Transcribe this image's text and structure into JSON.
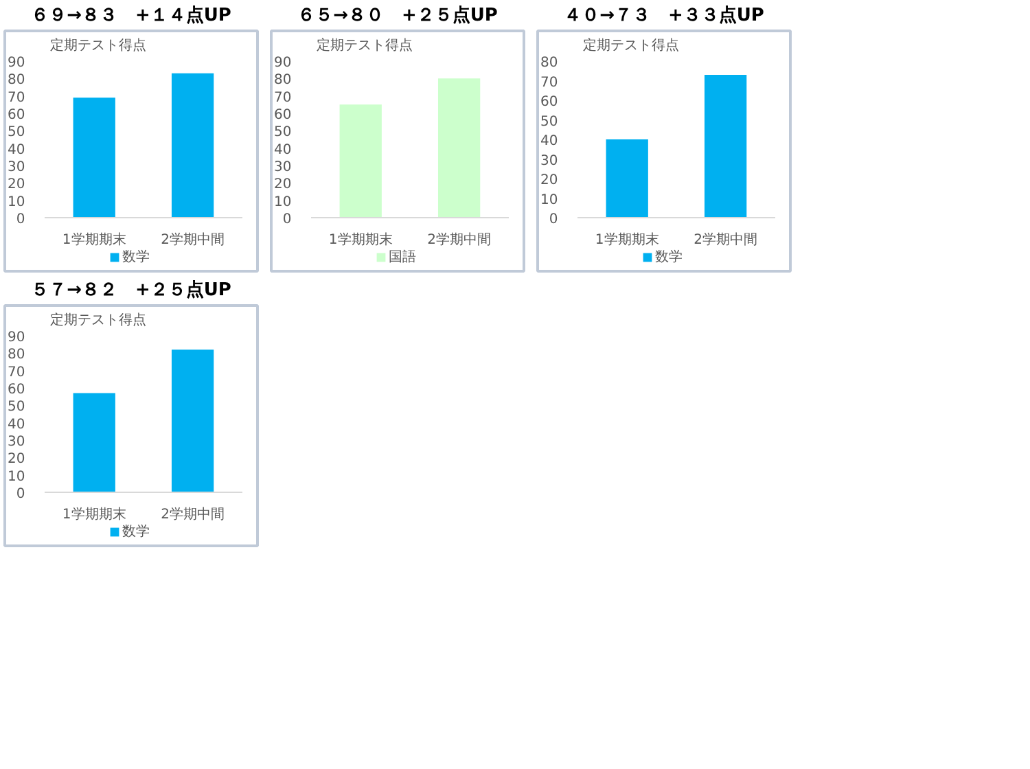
{
  "chart_data": [
    {
      "type": "bar",
      "title": "６９→８３　+１４点UP",
      "subtitle": "定期テスト得点",
      "categories": [
        "1学期期末",
        "2学期中間"
      ],
      "series": [
        {
          "name": "数学",
          "color": "#00b0f0",
          "values": [
            69,
            83
          ]
        }
      ],
      "ylim": [
        0,
        90
      ],
      "yticks": [
        0,
        10,
        20,
        30,
        40,
        50,
        60,
        70,
        80,
        90
      ],
      "grid": false,
      "legend": "bottom"
    },
    {
      "type": "bar",
      "title": "６５→８０　+２５点UP",
      "subtitle": "定期テスト得点",
      "categories": [
        "1学期期末",
        "2学期中間"
      ],
      "series": [
        {
          "name": "国語",
          "color": "#ccffcc",
          "values": [
            65,
            80
          ]
        }
      ],
      "ylim": [
        0,
        90
      ],
      "yticks": [
        0,
        10,
        20,
        30,
        40,
        50,
        60,
        70,
        80,
        90
      ],
      "grid": false,
      "legend": "bottom"
    },
    {
      "type": "bar",
      "title": "４０→７３　+３３点UP",
      "subtitle": "定期テスト得点",
      "categories": [
        "1学期期末",
        "2学期中間"
      ],
      "series": [
        {
          "name": "数学",
          "color": "#00b0f0",
          "values": [
            40,
            73
          ]
        }
      ],
      "ylim": [
        0,
        80
      ],
      "yticks": [
        0,
        10,
        20,
        30,
        40,
        50,
        60,
        70,
        80
      ],
      "grid": false,
      "legend": "bottom"
    },
    {
      "type": "bar",
      "title": "５７→８２　+２５点UP",
      "subtitle": "定期テスト得点",
      "categories": [
        "1学期期末",
        "2学期中間"
      ],
      "series": [
        {
          "name": "数学",
          "color": "#00b0f0",
          "values": [
            57,
            82
          ]
        }
      ],
      "ylim": [
        0,
        90
      ],
      "yticks": [
        0,
        10,
        20,
        30,
        40,
        50,
        60,
        70,
        80,
        90
      ],
      "grid": false,
      "legend": "bottom"
    }
  ]
}
